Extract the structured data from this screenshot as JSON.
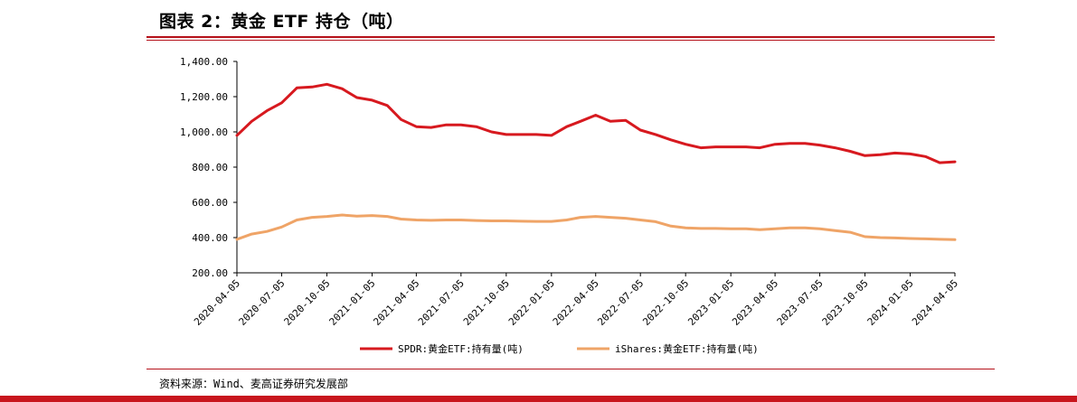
{
  "title": "图表 2：黄金 ETF 持仓（吨）",
  "source": "资料来源：Wind、麦高证券研究发展部",
  "colors": {
    "spdr": "#d7191f",
    "ishares": "#efa467",
    "rule": "#b5121b"
  },
  "chart_data": {
    "type": "line",
    "title": "",
    "xlabel": "",
    "ylabel": "",
    "ylim": [
      200,
      1400
    ],
    "yticks": [
      "200.00",
      "400.00",
      "600.00",
      "800.00",
      "1,000.00",
      "1,200.00",
      "1,400.00"
    ],
    "xticks": [
      "2020-04-05",
      "2020-07-05",
      "2020-10-05",
      "2021-01-05",
      "2021-04-05",
      "2021-07-05",
      "2021-10-05",
      "2022-01-05",
      "2022-04-05",
      "2022-07-05",
      "2022-10-05",
      "2023-01-05",
      "2023-04-05",
      "2023-07-05",
      "2023-10-05",
      "2024-01-05",
      "2024-04-05"
    ],
    "legend_position": "bottom",
    "grid": false,
    "series": [
      {
        "name": "SPDR:黄金ETF:持有量(吨)",
        "points": [
          [
            "2020-04-05",
            980
          ],
          [
            "2020-05-05",
            1060
          ],
          [
            "2020-06-05",
            1120
          ],
          [
            "2020-07-05",
            1165
          ],
          [
            "2020-08-05",
            1250
          ],
          [
            "2020-09-05",
            1255
          ],
          [
            "2020-10-05",
            1270
          ],
          [
            "2020-11-05",
            1245
          ],
          [
            "2020-12-05",
            1195
          ],
          [
            "2021-01-05",
            1180
          ],
          [
            "2021-02-05",
            1150
          ],
          [
            "2021-03-05",
            1070
          ],
          [
            "2021-04-05",
            1030
          ],
          [
            "2021-05-05",
            1025
          ],
          [
            "2021-06-05",
            1040
          ],
          [
            "2021-07-05",
            1040
          ],
          [
            "2021-08-05",
            1030
          ],
          [
            "2021-09-05",
            1000
          ],
          [
            "2021-10-05",
            985
          ],
          [
            "2021-11-05",
            985
          ],
          [
            "2021-12-05",
            985
          ],
          [
            "2022-01-05",
            980
          ],
          [
            "2022-02-05",
            1030
          ],
          [
            "2022-03-05",
            1060
          ],
          [
            "2022-04-05",
            1095
          ],
          [
            "2022-05-05",
            1060
          ],
          [
            "2022-06-05",
            1065
          ],
          [
            "2022-07-05",
            1010
          ],
          [
            "2022-08-05",
            985
          ],
          [
            "2022-09-05",
            955
          ],
          [
            "2022-10-05",
            930
          ],
          [
            "2022-11-05",
            910
          ],
          [
            "2022-12-05",
            915
          ],
          [
            "2023-01-05",
            915
          ],
          [
            "2023-02-05",
            915
          ],
          [
            "2023-03-05",
            910
          ],
          [
            "2023-04-05",
            930
          ],
          [
            "2023-05-05",
            935
          ],
          [
            "2023-06-05",
            935
          ],
          [
            "2023-07-05",
            925
          ],
          [
            "2023-08-05",
            910
          ],
          [
            "2023-09-05",
            890
          ],
          [
            "2023-10-05",
            865
          ],
          [
            "2023-11-05",
            870
          ],
          [
            "2023-12-05",
            880
          ],
          [
            "2024-01-05",
            875
          ],
          [
            "2024-02-05",
            860
          ],
          [
            "2024-03-05",
            825
          ],
          [
            "2024-04-05",
            830
          ]
        ]
      },
      {
        "name": "iShares:黄金ETF:持有量(吨)",
        "points": [
          [
            "2020-04-05",
            390
          ],
          [
            "2020-05-05",
            420
          ],
          [
            "2020-06-05",
            435
          ],
          [
            "2020-07-05",
            460
          ],
          [
            "2020-08-05",
            500
          ],
          [
            "2020-09-05",
            515
          ],
          [
            "2020-10-05",
            520
          ],
          [
            "2020-11-05",
            528
          ],
          [
            "2020-12-05",
            522
          ],
          [
            "2021-01-05",
            525
          ],
          [
            "2021-02-05",
            520
          ],
          [
            "2021-03-05",
            505
          ],
          [
            "2021-04-05",
            500
          ],
          [
            "2021-05-05",
            498
          ],
          [
            "2021-06-05",
            500
          ],
          [
            "2021-07-05",
            500
          ],
          [
            "2021-08-05",
            497
          ],
          [
            "2021-09-05",
            495
          ],
          [
            "2021-10-05",
            495
          ],
          [
            "2021-11-05",
            493
          ],
          [
            "2021-12-05",
            492
          ],
          [
            "2022-01-05",
            492
          ],
          [
            "2022-02-05",
            500
          ],
          [
            "2022-03-05",
            515
          ],
          [
            "2022-04-05",
            520
          ],
          [
            "2022-05-05",
            515
          ],
          [
            "2022-06-05",
            510
          ],
          [
            "2022-07-05",
            500
          ],
          [
            "2022-08-05",
            490
          ],
          [
            "2022-09-05",
            465
          ],
          [
            "2022-10-05",
            455
          ],
          [
            "2022-11-05",
            452
          ],
          [
            "2022-12-05",
            452
          ],
          [
            "2023-01-05",
            450
          ],
          [
            "2023-02-05",
            450
          ],
          [
            "2023-03-05",
            445
          ],
          [
            "2023-04-05",
            450
          ],
          [
            "2023-05-05",
            455
          ],
          [
            "2023-06-05",
            455
          ],
          [
            "2023-07-05",
            450
          ],
          [
            "2023-08-05",
            440
          ],
          [
            "2023-09-05",
            430
          ],
          [
            "2023-10-05",
            405
          ],
          [
            "2023-11-05",
            400
          ],
          [
            "2023-12-05",
            398
          ],
          [
            "2024-01-05",
            395
          ],
          [
            "2024-02-05",
            393
          ],
          [
            "2024-03-05",
            390
          ],
          [
            "2024-04-05",
            388
          ]
        ]
      }
    ]
  }
}
